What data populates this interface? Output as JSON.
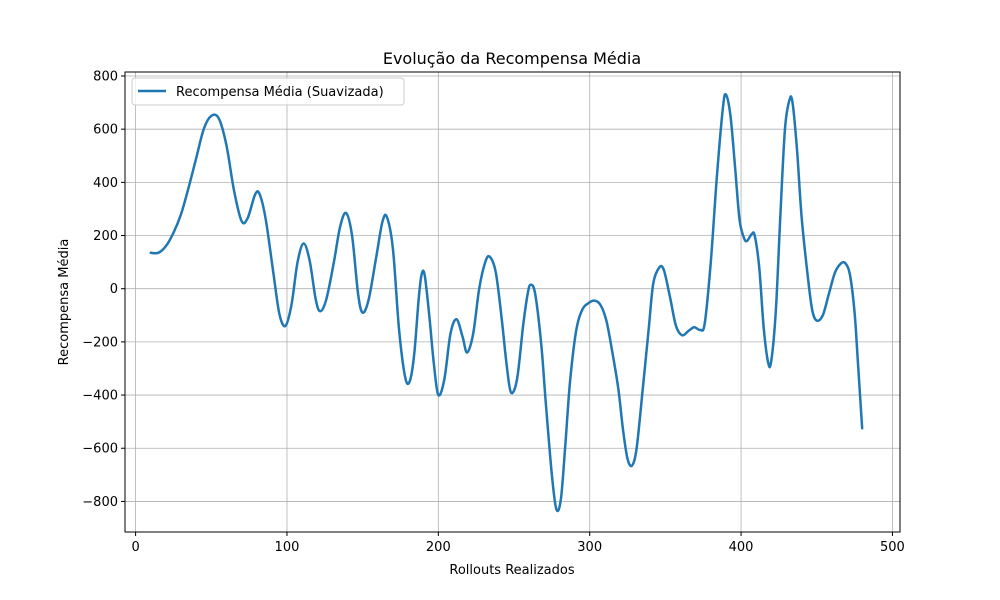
{
  "chart_data": {
    "type": "line",
    "title": "Evolução da Recompensa Média",
    "xlabel": "Rollouts Realizados",
    "ylabel": "Recompensa Média",
    "xlim": [
      -7,
      505
    ],
    "ylim": [
      -915,
      815
    ],
    "xticks": [
      "0",
      "100",
      "200",
      "300",
      "400",
      "500"
    ],
    "yticks": [
      "−800",
      "−600",
      "−400",
      "−200",
      "0",
      "200",
      "400",
      "600",
      "800"
    ],
    "grid": true,
    "legend": "top-left",
    "series": [
      {
        "name": "Recompensa Média (Suavizada)",
        "color": "#1f77b4",
        "points": [
          [
            10,
            135
          ],
          [
            15,
            135
          ],
          [
            20,
            160
          ],
          [
            25,
            210
          ],
          [
            30,
            280
          ],
          [
            35,
            380
          ],
          [
            40,
            490
          ],
          [
            45,
            600
          ],
          [
            50,
            650
          ],
          [
            55,
            640
          ],
          [
            60,
            540
          ],
          [
            65,
            370
          ],
          [
            70,
            255
          ],
          [
            74,
            265
          ],
          [
            79,
            355
          ],
          [
            82,
            355
          ],
          [
            86,
            260
          ],
          [
            91,
            60
          ],
          [
            95,
            -95
          ],
          [
            99,
            -140
          ],
          [
            103,
            -60
          ],
          [
            107,
            100
          ],
          [
            111,
            170
          ],
          [
            115,
            105
          ],
          [
            119,
            -40
          ],
          [
            122,
            -85
          ],
          [
            126,
            -40
          ],
          [
            131,
            100
          ],
          [
            135,
            230
          ],
          [
            139,
            285
          ],
          [
            143,
            200
          ],
          [
            147,
            -20
          ],
          [
            150,
            -90
          ],
          [
            154,
            -40
          ],
          [
            159,
            120
          ],
          [
            163,
            250
          ],
          [
            166,
            270
          ],
          [
            170,
            150
          ],
          [
            174,
            -150
          ],
          [
            178,
            -330
          ],
          [
            181,
            -350
          ],
          [
            184,
            -250
          ],
          [
            187,
            -40
          ],
          [
            189,
            55
          ],
          [
            191,
            50
          ],
          [
            194,
            -100
          ],
          [
            197,
            -280
          ],
          [
            200,
            -400
          ],
          [
            204,
            -340
          ],
          [
            208,
            -170
          ],
          [
            212,
            -115
          ],
          [
            216,
            -180
          ],
          [
            219,
            -240
          ],
          [
            223,
            -170
          ],
          [
            227,
            0
          ],
          [
            231,
            100
          ],
          [
            234,
            120
          ],
          [
            238,
            60
          ],
          [
            242,
            -120
          ],
          [
            245,
            -280
          ],
          [
            248,
            -390
          ],
          [
            252,
            -340
          ],
          [
            256,
            -140
          ],
          [
            259,
            -20
          ],
          [
            261,
            15
          ],
          [
            264,
            -20
          ],
          [
            268,
            -210
          ],
          [
            271,
            -430
          ],
          [
            275,
            -700
          ],
          [
            278,
            -830
          ],
          [
            281,
            -790
          ],
          [
            284,
            -580
          ],
          [
            287,
            -350
          ],
          [
            291,
            -160
          ],
          [
            295,
            -80
          ],
          [
            299,
            -55
          ],
          [
            303,
            -45
          ],
          [
            307,
            -60
          ],
          [
            311,
            -120
          ],
          [
            315,
            -240
          ],
          [
            319,
            -380
          ],
          [
            322,
            -530
          ],
          [
            325,
            -640
          ],
          [
            328,
            -665
          ],
          [
            331,
            -600
          ],
          [
            335,
            -380
          ],
          [
            339,
            -150
          ],
          [
            342,
            20
          ],
          [
            346,
            80
          ],
          [
            349,
            70
          ],
          [
            353,
            -30
          ],
          [
            357,
            -140
          ],
          [
            361,
            -175
          ],
          [
            365,
            -160
          ],
          [
            369,
            -145
          ],
          [
            373,
            -155
          ],
          [
            376,
            -130
          ],
          [
            380,
            100
          ],
          [
            384,
            420
          ],
          [
            388,
            680
          ],
          [
            390,
            730
          ],
          [
            393,
            650
          ],
          [
            396,
            460
          ],
          [
            399,
            260
          ],
          [
            402,
            190
          ],
          [
            404,
            180
          ],
          [
            407,
            205
          ],
          [
            409,
            200
          ],
          [
            412,
            80
          ],
          [
            415,
            -150
          ],
          [
            418,
            -280
          ],
          [
            420,
            -270
          ],
          [
            423,
            -80
          ],
          [
            426,
            280
          ],
          [
            429,
            600
          ],
          [
            432,
            710
          ],
          [
            434,
            700
          ],
          [
            437,
            520
          ],
          [
            440,
            270
          ],
          [
            444,
            50
          ],
          [
            447,
            -80
          ],
          [
            450,
            -120
          ],
          [
            454,
            -100
          ],
          [
            458,
            -20
          ],
          [
            462,
            60
          ],
          [
            466,
            95
          ],
          [
            469,
            95
          ],
          [
            472,
            50
          ],
          [
            475,
            -90
          ],
          [
            477,
            -260
          ],
          [
            480,
            -525
          ]
        ]
      }
    ]
  }
}
